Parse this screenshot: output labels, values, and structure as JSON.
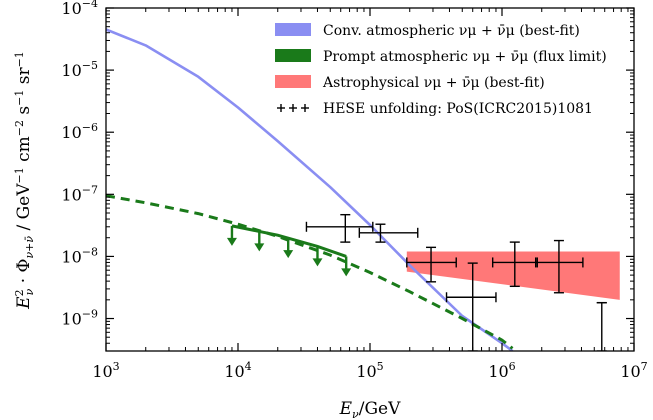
{
  "chart_data": {
    "type": "line",
    "xlabel": "E_ν/GeV",
    "ylabel": "E²_ν · Φ_{ν+ν̄} / GeV⁻¹ cm⁻² s⁻¹ sr⁻¹",
    "x_scale": "log",
    "y_scale": "log",
    "xlim": [
      1000,
      10000000
    ],
    "ylim": [
      3e-10,
      0.0001
    ],
    "x_ticks": [
      {
        "mant": "10",
        "exp": "3",
        "value": 1000
      },
      {
        "mant": "10",
        "exp": "4",
        "value": 10000
      },
      {
        "mant": "10",
        "exp": "5",
        "value": 100000
      },
      {
        "mant": "10",
        "exp": "6",
        "value": 1000000
      },
      {
        "mant": "10",
        "exp": "7",
        "value": 10000000
      }
    ],
    "y_ticks": [
      {
        "mant": "10",
        "exp": "−9",
        "value": 1e-09
      },
      {
        "mant": "10",
        "exp": "−8",
        "value": 1e-08
      },
      {
        "mant": "10",
        "exp": "−7",
        "value": 1e-07
      },
      {
        "mant": "10",
        "exp": "−6",
        "value": 1e-06
      },
      {
        "mant": "10",
        "exp": "−5",
        "value": 1e-05
      },
      {
        "mant": "10",
        "exp": "−4",
        "value": 0.0001
      }
    ],
    "grid": false,
    "legend_position": "top-right",
    "series": [
      {
        "name": "Conv. atmospheric νμ + ν̄μ (best-fit)",
        "kind": "line",
        "color": "#8a8ef2",
        "points": [
          [
            1000,
            4.5e-05
          ],
          [
            2000,
            2.5e-05
          ],
          [
            5000,
            7.8e-06
          ],
          [
            10000,
            2.5e-06
          ],
          [
            20000,
            7.2e-07
          ],
          [
            50000,
            1.3e-07
          ],
          [
            100000,
            3.2e-08
          ],
          [
            200000,
            7.2e-09
          ],
          [
            500000,
            1.1e-09
          ],
          [
            1000000,
            4e-10
          ],
          [
            1200000,
            3e-10
          ]
        ]
      },
      {
        "name": "Prompt atmospheric νμ + ν̄μ (flux limit)",
        "kind": "dashed-line",
        "color": "#1a7a1a",
        "points": [
          [
            1000,
            9.5e-08
          ],
          [
            2000,
            7.3e-08
          ],
          [
            5000,
            4.9e-08
          ],
          [
            10000,
            3.3e-08
          ],
          [
            20000,
            2.1e-08
          ],
          [
            50000,
            1.05e-08
          ],
          [
            100000,
            5.5e-09
          ],
          [
            200000,
            2.7e-09
          ],
          [
            500000,
            1e-09
          ],
          [
            1000000,
            4.5e-10
          ],
          [
            1200000,
            3.3e-10
          ]
        ],
        "solid_segment": [
          [
            9000,
            3.1e-08
          ],
          [
            20000,
            2.2e-08
          ],
          [
            40000,
            1.45e-08
          ],
          [
            66000,
            1e-08
          ]
        ],
        "upper_limit_arrows_x": [
          9000,
          14500,
          24000,
          40000,
          66000
        ]
      },
      {
        "name": "Astrophysical νμ + ν̄μ (best-fit)",
        "kind": "band",
        "color": "#ff7878",
        "x": [
          190000,
          7800000
        ],
        "y_low": [
          5.7e-09,
          2e-09
        ],
        "y_high": [
          1.2e-08,
          1.2e-08
        ]
      },
      {
        "name": "HESE unfolding: PoS(ICRC2015)1081",
        "kind": "errorbars",
        "color": "#000000",
        "points": [
          {
            "x": 65000,
            "y": 3e-08,
            "xlo": 33000,
            "xhi": 105000,
            "ylo": 1.7e-08,
            "yhi": 4.7e-08
          },
          {
            "x": 120000,
            "y": 2.4e-08,
            "xlo": 83000,
            "xhi": 230000,
            "ylo": 1.7e-08,
            "yhi": 3.3e-08
          },
          {
            "x": 290000,
            "y": 8e-09,
            "xlo": 190000,
            "xhi": 450000,
            "ylo": 3.9e-09,
            "yhi": 1.4e-08
          },
          {
            "x": 600000,
            "y": 2.2e-09,
            "xlo": 380000,
            "xhi": 900000,
            "ylo": 3e-10,
            "yhi": 7.8e-09
          },
          {
            "x": 1250000,
            "y": 8e-09,
            "xlo": 850000,
            "xhi": 1850000,
            "ylo": 3.3e-09,
            "yhi": 1.7e-08
          },
          {
            "x": 2700000,
            "y": 8e-09,
            "xlo": 1800000,
            "xhi": 4100000,
            "ylo": 2.6e-09,
            "yhi": 1.8e-08
          },
          {
            "x": 5700000,
            "y": 1.8e-09,
            "xlo": 5700000,
            "xhi": 5700000,
            "ylo": 3e-10,
            "yhi": 1.8e-09
          }
        ]
      }
    ]
  }
}
